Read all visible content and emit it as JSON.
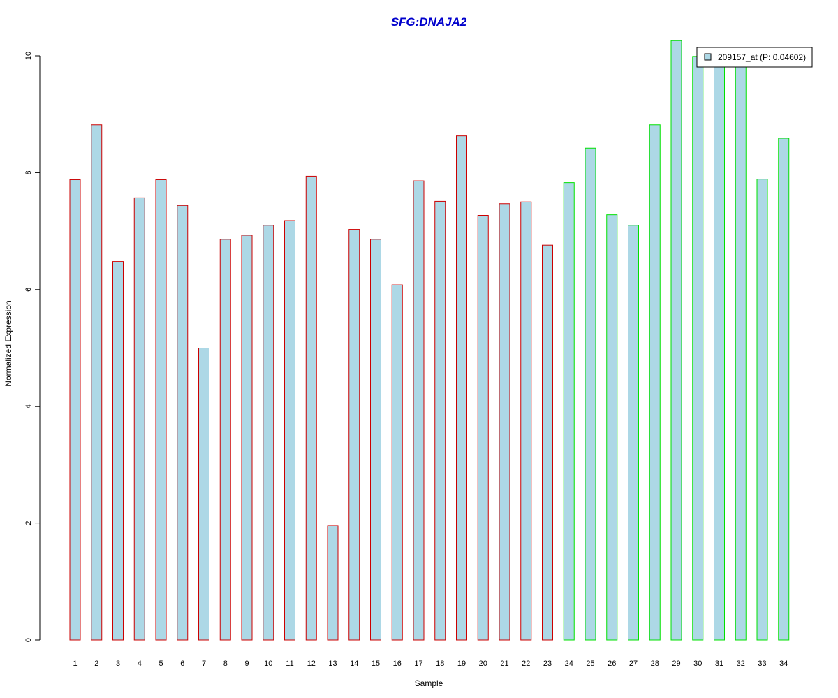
{
  "chart_data": {
    "type": "bar",
    "title": "SFG:DNAJA2",
    "xlabel": "Sample",
    "ylabel": "Normalized Expression",
    "ylim": [
      0,
      10
    ],
    "yticks": [
      0,
      2,
      4,
      6,
      8,
      10
    ],
    "grid": false,
    "legend": {
      "placement": "top-right",
      "entry": "209157_at (P: 0.04602)"
    },
    "categories": [
      "1",
      "2",
      "3",
      "4",
      "5",
      "6",
      "7",
      "8",
      "9",
      "10",
      "11",
      "12",
      "13",
      "14",
      "15",
      "16",
      "17",
      "18",
      "19",
      "20",
      "21",
      "22",
      "23",
      "24",
      "25",
      "26",
      "27",
      "28",
      "29",
      "30",
      "31",
      "32",
      "33",
      "34"
    ],
    "values": [
      7.88,
      8.82,
      6.48,
      7.57,
      7.88,
      7.44,
      5.0,
      6.86,
      6.93,
      7.1,
      7.18,
      7.94,
      1.96,
      7.03,
      6.86,
      6.08,
      7.86,
      7.51,
      8.63,
      7.27,
      7.47,
      7.5,
      6.76,
      7.83,
      8.42,
      7.28,
      7.1,
      8.82,
      10.26,
      9.99,
      9.87,
      9.87,
      7.89,
      8.59
    ],
    "bar_fill": "#add8e6",
    "group_colors": {
      "group1": "#cc0000",
      "group2": "#00e000"
    },
    "group_split_index": 23
  }
}
